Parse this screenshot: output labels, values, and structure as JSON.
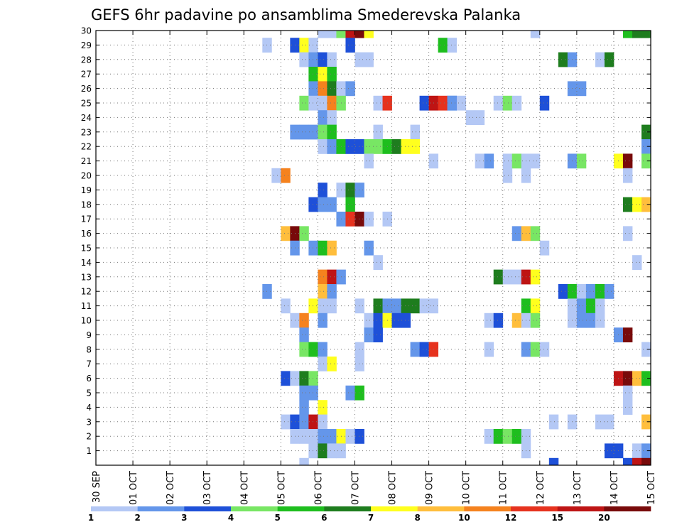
{
  "chart_data": {
    "type": "heatmap",
    "title": "GEFS 6hr padavine po ansamblima Smederevska Palanka",
    "x_tick_labels": [
      "30 SEP",
      "01 OCT",
      "02 OCT",
      "03 OCT",
      "04 OCT",
      "05 OCT",
      "06 OCT",
      "07 OCT",
      "08 OCT",
      "09 OCT",
      "10 OCT",
      "11 OCT",
      "12 OCT",
      "13 OCT",
      "14 OCT",
      "15 OCT"
    ],
    "y_tick_labels": [
      "1",
      "2",
      "3",
      "4",
      "5",
      "6",
      "7",
      "8",
      "9",
      "10",
      "11",
      "12",
      "13",
      "14",
      "15",
      "16",
      "17",
      "18",
      "19",
      "20",
      "21",
      "22",
      "23",
      "24",
      "25",
      "26",
      "27",
      "28",
      "29",
      "30"
    ],
    "time_steps_per_day": 4,
    "total_time_steps": 60,
    "members_range": [
      0,
      30
    ],
    "grid": true,
    "legend_position": "bottom",
    "colorbar": {
      "labels": [
        "1",
        "2",
        "3",
        "4",
        "5",
        "6",
        "7",
        "8",
        "10",
        "12",
        "15",
        "20"
      ],
      "colors": [
        "#b4c8f5",
        "#6496ea",
        "#1e50d8",
        "#78e664",
        "#1ebe1e",
        "#1e7d1e",
        "#ffff1e",
        "#ffbe3c",
        "#f5821e",
        "#e6321e",
        "#be1414",
        "#780a0a"
      ]
    },
    "cells": [
      [
        0,
        24,
        29,
        0
      ],
      [
        0,
        25,
        29,
        0
      ],
      [
        0,
        26,
        29,
        3
      ],
      [
        0,
        27,
        29,
        10
      ],
      [
        0,
        28,
        29,
        11
      ],
      [
        0,
        29,
        29,
        6
      ],
      [
        0,
        47,
        29,
        0
      ],
      [
        0,
        57,
        29,
        4
      ],
      [
        0,
        58,
        29,
        5
      ],
      [
        0,
        59,
        29,
        5
      ],
      [
        1,
        18,
        28,
        0
      ],
      [
        1,
        21,
        28,
        2
      ],
      [
        1,
        22,
        28,
        6
      ],
      [
        1,
        23,
        28,
        0
      ],
      [
        1,
        27,
        28,
        2
      ],
      [
        1,
        37,
        28,
        4
      ],
      [
        1,
        38,
        28,
        0
      ],
      [
        2,
        22,
        27,
        0
      ],
      [
        2,
        23,
        27,
        1
      ],
      [
        2,
        24,
        27,
        2
      ],
      [
        2,
        25,
        27,
        0
      ],
      [
        2,
        28,
        27,
        0
      ],
      [
        2,
        29,
        27,
        0
      ],
      [
        2,
        50,
        27,
        5
      ],
      [
        2,
        51,
        27,
        1
      ],
      [
        2,
        54,
        27,
        0
      ],
      [
        2,
        55,
        27,
        5
      ],
      [
        3,
        23,
        26,
        4
      ],
      [
        3,
        24,
        26,
        6
      ],
      [
        3,
        25,
        26,
        4
      ],
      [
        4,
        23,
        25,
        1
      ],
      [
        4,
        24,
        25,
        8
      ],
      [
        4,
        25,
        25,
        5
      ],
      [
        4,
        26,
        25,
        0
      ],
      [
        4,
        27,
        25,
        1
      ],
      [
        4,
        51,
        25,
        1
      ],
      [
        4,
        52,
        25,
        1
      ],
      [
        5,
        22,
        24,
        3
      ],
      [
        5,
        23,
        24,
        0
      ],
      [
        5,
        24,
        24,
        0
      ],
      [
        5,
        25,
        24,
        8
      ],
      [
        5,
        26,
        24,
        3
      ],
      [
        5,
        30,
        24,
        0
      ],
      [
        5,
        31,
        24,
        9
      ],
      [
        5,
        35,
        24,
        2
      ],
      [
        5,
        36,
        24,
        10
      ],
      [
        5,
        37,
        24,
        9
      ],
      [
        5,
        38,
        24,
        1
      ],
      [
        5,
        39,
        24,
        0
      ],
      [
        5,
        38,
        24,
        1
      ],
      [
        5,
        43,
        24,
        0
      ],
      [
        5,
        44,
        24,
        3
      ],
      [
        5,
        45,
        24,
        0
      ],
      [
        5,
        48,
        24,
        2
      ],
      [
        6,
        24,
        23,
        1
      ],
      [
        6,
        25,
        23,
        0
      ],
      [
        6,
        40,
        23,
        0
      ],
      [
        6,
        41,
        23,
        0
      ],
      [
        7,
        21,
        22,
        1
      ],
      [
        7,
        22,
        22,
        1
      ],
      [
        7,
        23,
        22,
        1
      ],
      [
        7,
        24,
        22,
        3
      ],
      [
        7,
        25,
        22,
        4
      ],
      [
        7,
        30,
        22,
        0
      ],
      [
        7,
        34,
        22,
        0
      ],
      [
        7,
        59,
        22,
        5
      ],
      [
        8,
        24,
        21,
        0
      ],
      [
        8,
        25,
        21,
        1
      ],
      [
        8,
        26,
        21,
        4
      ],
      [
        8,
        27,
        21,
        2
      ],
      [
        8,
        28,
        21,
        2
      ],
      [
        8,
        29,
        21,
        3
      ],
      [
        8,
        30,
        21,
        3
      ],
      [
        8,
        31,
        21,
        4
      ],
      [
        8,
        32,
        21,
        5
      ],
      [
        8,
        33,
        21,
        6
      ],
      [
        8,
        34,
        21,
        6
      ],
      [
        8,
        59,
        21,
        1
      ],
      [
        9,
        29,
        20,
        0
      ],
      [
        9,
        36,
        20,
        0
      ],
      [
        9,
        41,
        20,
        0
      ],
      [
        9,
        42,
        20,
        1
      ],
      [
        9,
        44,
        20,
        0
      ],
      [
        9,
        45,
        20,
        3
      ],
      [
        9,
        46,
        20,
        0
      ],
      [
        9,
        47,
        20,
        0
      ],
      [
        9,
        51,
        20,
        1
      ],
      [
        9,
        52,
        20,
        3
      ],
      [
        9,
        56,
        20,
        6
      ],
      [
        9,
        57,
        20,
        11
      ],
      [
        9,
        59,
        20,
        3
      ],
      [
        10,
        19,
        19,
        0
      ],
      [
        10,
        20,
        19,
        8
      ],
      [
        10,
        44,
        19,
        0
      ],
      [
        10,
        46,
        19,
        0
      ],
      [
        10,
        57,
        19,
        0
      ],
      [
        11,
        24,
        18,
        2
      ],
      [
        11,
        26,
        18,
        0
      ],
      [
        11,
        27,
        18,
        5
      ],
      [
        11,
        28,
        18,
        1
      ],
      [
        12,
        23,
        17,
        2
      ],
      [
        12,
        24,
        17,
        1
      ],
      [
        12,
        25,
        17,
        1
      ],
      [
        12,
        27,
        17,
        4
      ],
      [
        12,
        57,
        17,
        5
      ],
      [
        12,
        58,
        17,
        6
      ],
      [
        12,
        59,
        17,
        7
      ],
      [
        13,
        26,
        16,
        1
      ],
      [
        13,
        27,
        16,
        9
      ],
      [
        13,
        28,
        16,
        11
      ],
      [
        13,
        29,
        16,
        0
      ],
      [
        13,
        31,
        16,
        0
      ],
      [
        14,
        20,
        15,
        7
      ],
      [
        14,
        21,
        15,
        11
      ],
      [
        14,
        22,
        15,
        3
      ],
      [
        14,
        45,
        15,
        1
      ],
      [
        14,
        46,
        15,
        7
      ],
      [
        14,
        47,
        15,
        3
      ],
      [
        14,
        57,
        15,
        0
      ],
      [
        15,
        21,
        14,
        1
      ],
      [
        15,
        23,
        14,
        1
      ],
      [
        15,
        24,
        14,
        4
      ],
      [
        15,
        25,
        14,
        7
      ],
      [
        15,
        29,
        14,
        1
      ],
      [
        15,
        48,
        14,
        0
      ],
      [
        16,
        30,
        13,
        0
      ],
      [
        16,
        58,
        13,
        0
      ],
      [
        17,
        24,
        12,
        8
      ],
      [
        17,
        25,
        12,
        10
      ],
      [
        17,
        26,
        12,
        1
      ],
      [
        17,
        43,
        12,
        5
      ],
      [
        17,
        44,
        12,
        0
      ],
      [
        17,
        45,
        12,
        0
      ],
      [
        17,
        46,
        12,
        10
      ],
      [
        17,
        47,
        12,
        6
      ],
      [
        18,
        18,
        11,
        1
      ],
      [
        18,
        24,
        11,
        7
      ],
      [
        18,
        25,
        11,
        1
      ],
      [
        18,
        50,
        11,
        2
      ],
      [
        18,
        51,
        11,
        4
      ],
      [
        18,
        52,
        11,
        0
      ],
      [
        18,
        53,
        11,
        1
      ],
      [
        18,
        54,
        11,
        4
      ],
      [
        18,
        55,
        11,
        1
      ],
      [
        19,
        20,
        10,
        0
      ],
      [
        19,
        23,
        10,
        6
      ],
      [
        19,
        24,
        10,
        0
      ],
      [
        19,
        25,
        10,
        0
      ],
      [
        19,
        28,
        10,
        0
      ],
      [
        19,
        30,
        10,
        5
      ],
      [
        19,
        31,
        10,
        1
      ],
      [
        19,
        32,
        10,
        1
      ],
      [
        19,
        33,
        10,
        5
      ],
      [
        19,
        34,
        10,
        5
      ],
      [
        19,
        35,
        10,
        0
      ],
      [
        19,
        36,
        10,
        0
      ],
      [
        19,
        46,
        10,
        4
      ],
      [
        19,
        47,
        10,
        6
      ],
      [
        19,
        51,
        10,
        0
      ],
      [
        19,
        52,
        10,
        1
      ],
      [
        19,
        53,
        10,
        4
      ],
      [
        19,
        54,
        10,
        0
      ],
      [
        20,
        21,
        9,
        0
      ],
      [
        20,
        22,
        9,
        8
      ],
      [
        20,
        24,
        9,
        1
      ],
      [
        20,
        29,
        9,
        0
      ],
      [
        20,
        30,
        9,
        2
      ],
      [
        20,
        31,
        9,
        6
      ],
      [
        20,
        32,
        9,
        2
      ],
      [
        20,
        33,
        9,
        2
      ],
      [
        20,
        42,
        9,
        0
      ],
      [
        20,
        43,
        9,
        2
      ],
      [
        20,
        45,
        9,
        7
      ],
      [
        20,
        46,
        9,
        0
      ],
      [
        20,
        47,
        9,
        3
      ],
      [
        20,
        51,
        9,
        0
      ],
      [
        20,
        52,
        9,
        1
      ],
      [
        20,
        53,
        9,
        1
      ],
      [
        20,
        54,
        9,
        0
      ],
      [
        21,
        22,
        8,
        1
      ],
      [
        21,
        29,
        8,
        1
      ],
      [
        21,
        30,
        8,
        2
      ],
      [
        21,
        56,
        8,
        1
      ],
      [
        21,
        57,
        8,
        11
      ],
      [
        22,
        22,
        7,
        3
      ],
      [
        22,
        23,
        7,
        4
      ],
      [
        22,
        24,
        7,
        1
      ],
      [
        22,
        28,
        7,
        0
      ],
      [
        22,
        34,
        7,
        1
      ],
      [
        22,
        35,
        7,
        2
      ],
      [
        22,
        36,
        7,
        9
      ],
      [
        22,
        42,
        7,
        0
      ],
      [
        22,
        46,
        7,
        1
      ],
      [
        22,
        47,
        7,
        3
      ],
      [
        22,
        48,
        7,
        0
      ],
      [
        22,
        59,
        7,
        0
      ],
      [
        23,
        24,
        6,
        0
      ],
      [
        23,
        25,
        6,
        6
      ],
      [
        23,
        28,
        6,
        0
      ],
      [
        24,
        20,
        5,
        2
      ],
      [
        24,
        21,
        5,
        0
      ],
      [
        24,
        22,
        5,
        5
      ],
      [
        24,
        23,
        5,
        3
      ],
      [
        24,
        56,
        5,
        10
      ],
      [
        24,
        57,
        5,
        11
      ],
      [
        24,
        58,
        5,
        7
      ],
      [
        24,
        59,
        5,
        4
      ],
      [
        25,
        22,
        4,
        1
      ],
      [
        25,
        23,
        4,
        1
      ],
      [
        25,
        27,
        4,
        1
      ],
      [
        25,
        28,
        4,
        4
      ],
      [
        25,
        57,
        4,
        0
      ],
      [
        26,
        22,
        3,
        1
      ],
      [
        26,
        24,
        3,
        6
      ],
      [
        26,
        57,
        3,
        0
      ],
      [
        27,
        20,
        2,
        0
      ],
      [
        27,
        21,
        2,
        2
      ],
      [
        27,
        22,
        2,
        1
      ],
      [
        27,
        23,
        2,
        10
      ],
      [
        27,
        24,
        2,
        0
      ],
      [
        27,
        49,
        2,
        0
      ],
      [
        27,
        51,
        2,
        0
      ],
      [
        27,
        54,
        2,
        0
      ],
      [
        27,
        55,
        2,
        0
      ],
      [
        27,
        59,
        2,
        7
      ],
      [
        28,
        21,
        1,
        0
      ],
      [
        28,
        22,
        1,
        0
      ],
      [
        28,
        23,
        1,
        0
      ],
      [
        28,
        24,
        1,
        1
      ],
      [
        28,
        25,
        1,
        1
      ],
      [
        28,
        26,
        1,
        6
      ],
      [
        28,
        27,
        1,
        0
      ],
      [
        28,
        28,
        1,
        2
      ],
      [
        28,
        42,
        1,
        0
      ],
      [
        28,
        43,
        1,
        4
      ],
      [
        28,
        44,
        1,
        3
      ],
      [
        28,
        45,
        1,
        4
      ],
      [
        28,
        46,
        1,
        0
      ],
      [
        29,
        23,
        0,
        0
      ],
      [
        29,
        24,
        0,
        5
      ],
      [
        29,
        25,
        0,
        0
      ],
      [
        29,
        26,
        0,
        0
      ],
      [
        29,
        46,
        0,
        0
      ],
      [
        29,
        55,
        0,
        2
      ],
      [
        29,
        56,
        0,
        2
      ],
      [
        29,
        58,
        0,
        0
      ],
      [
        29,
        59,
        0,
        1
      ],
      [
        30,
        22,
        -1,
        0
      ],
      [
        30,
        49,
        -1,
        2
      ],
      [
        30,
        57,
        -1,
        2
      ],
      [
        30,
        58,
        -1,
        10
      ],
      [
        30,
        59,
        -1,
        11
      ]
    ]
  }
}
